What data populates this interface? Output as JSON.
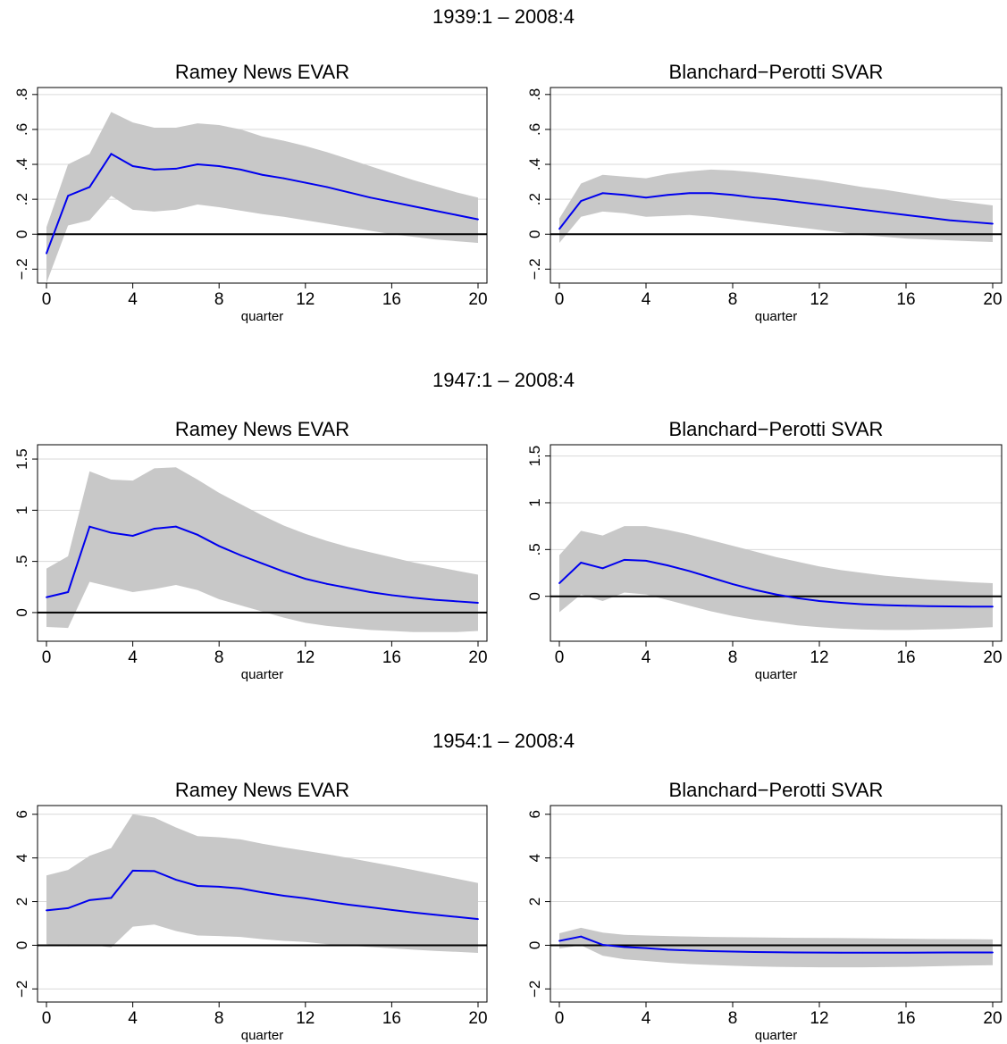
{
  "row_titles": [
    "1939:1 – 2008:4",
    "1947:1 – 2008:4",
    "1954:1 – 2008:4"
  ],
  "colors": {
    "line": "#0000ee",
    "band": "#c8c8c8",
    "grid": "#d9d9d9",
    "zero_line": "#000000"
  },
  "chart_data": [
    {
      "type": "line",
      "title": "Ramey News EVAR",
      "xlabel": "quarter",
      "ylabel": "",
      "xlim": [
        0,
        20
      ],
      "ylim": [
        -0.28,
        0.84
      ],
      "xticks": [
        0,
        4,
        8,
        12,
        16,
        20
      ],
      "xtick_labels": [
        "0",
        "4",
        "8",
        "12",
        "16",
        "20"
      ],
      "yticks": [
        -0.2,
        0,
        0.2,
        0.4,
        0.6,
        0.8
      ],
      "ytick_labels": [
        "−.2",
        "0",
        ".2",
        ".4",
        ".6",
        ".8"
      ],
      "x": [
        0,
        1,
        2,
        3,
        4,
        5,
        6,
        7,
        8,
        9,
        10,
        11,
        12,
        13,
        14,
        15,
        16,
        17,
        18,
        19,
        20
      ],
      "series": [
        {
          "values": [
            -0.11,
            0.22,
            0.27,
            0.46,
            0.39,
            0.37,
            0.375,
            0.4,
            0.39,
            0.37,
            0.34,
            0.32,
            0.295,
            0.27,
            0.24,
            0.21,
            0.185,
            0.16,
            0.135,
            0.11,
            0.085
          ],
          "band": "upper-lower"
        }
      ],
      "upper": [
        0.04,
        0.4,
        0.46,
        0.7,
        0.64,
        0.61,
        0.61,
        0.635,
        0.625,
        0.6,
        0.56,
        0.535,
        0.505,
        0.47,
        0.43,
        0.39,
        0.35,
        0.31,
        0.275,
        0.24,
        0.21
      ],
      "lower": [
        -0.28,
        0.05,
        0.08,
        0.22,
        0.14,
        0.13,
        0.14,
        0.17,
        0.155,
        0.135,
        0.115,
        0.1,
        0.08,
        0.06,
        0.04,
        0.02,
        0.0,
        -0.015,
        -0.03,
        -0.04,
        -0.05
      ]
    },
    {
      "type": "line",
      "title": "Blanchard−Perotti SVAR",
      "xlabel": "quarter",
      "ylabel": "",
      "xlim": [
        0,
        20
      ],
      "ylim": [
        -0.28,
        0.84
      ],
      "xticks": [
        0,
        4,
        8,
        12,
        16,
        20
      ],
      "xtick_labels": [
        "0",
        "4",
        "8",
        "12",
        "16",
        "20"
      ],
      "yticks": [
        -0.2,
        0,
        0.2,
        0.4,
        0.6,
        0.8
      ],
      "ytick_labels": [
        "−.2",
        "0",
        ".2",
        ".4",
        ".6",
        ".8"
      ],
      "x": [
        0,
        1,
        2,
        3,
        4,
        5,
        6,
        7,
        8,
        9,
        10,
        11,
        12,
        13,
        14,
        15,
        16,
        17,
        18,
        19,
        20
      ],
      "series": [
        {
          "values": [
            0.03,
            0.19,
            0.235,
            0.225,
            0.21,
            0.225,
            0.235,
            0.235,
            0.225,
            0.21,
            0.2,
            0.185,
            0.17,
            0.155,
            0.14,
            0.125,
            0.11,
            0.095,
            0.08,
            0.07,
            0.06
          ],
          "band": "upper-lower"
        }
      ],
      "upper": [
        0.09,
        0.29,
        0.34,
        0.33,
        0.32,
        0.345,
        0.36,
        0.37,
        0.365,
        0.355,
        0.34,
        0.325,
        0.31,
        0.29,
        0.27,
        0.255,
        0.235,
        0.215,
        0.195,
        0.18,
        0.165
      ],
      "lower": [
        -0.05,
        0.1,
        0.13,
        0.12,
        0.1,
        0.105,
        0.11,
        0.1,
        0.085,
        0.07,
        0.055,
        0.04,
        0.025,
        0.01,
        -0.005,
        -0.015,
        -0.025,
        -0.03,
        -0.035,
        -0.04,
        -0.045
      ]
    },
    {
      "type": "line",
      "title": "Ramey News EVAR",
      "xlabel": "quarter",
      "ylabel": "",
      "xlim": [
        0,
        20
      ],
      "ylim": [
        -0.28,
        1.64
      ],
      "xticks": [
        0,
        4,
        8,
        12,
        16,
        20
      ],
      "xtick_labels": [
        "0",
        "4",
        "8",
        "12",
        "16",
        "20"
      ],
      "yticks": [
        0,
        0.5,
        1,
        1.5
      ],
      "ytick_labels": [
        "0",
        ".5",
        "1",
        "1.5"
      ],
      "x": [
        0,
        1,
        2,
        3,
        4,
        5,
        6,
        7,
        8,
        9,
        10,
        11,
        12,
        13,
        14,
        15,
        16,
        17,
        18,
        19,
        20
      ],
      "series": [
        {
          "values": [
            0.15,
            0.2,
            0.84,
            0.78,
            0.75,
            0.82,
            0.84,
            0.76,
            0.65,
            0.56,
            0.48,
            0.4,
            0.33,
            0.28,
            0.24,
            0.2,
            0.17,
            0.145,
            0.125,
            0.11,
            0.095
          ],
          "band": "upper-lower"
        }
      ],
      "upper": [
        0.43,
        0.55,
        1.38,
        1.3,
        1.29,
        1.41,
        1.42,
        1.3,
        1.17,
        1.06,
        0.95,
        0.85,
        0.77,
        0.7,
        0.64,
        0.59,
        0.54,
        0.49,
        0.45,
        0.41,
        0.37
      ],
      "lower": [
        -0.14,
        -0.15,
        0.3,
        0.25,
        0.2,
        0.23,
        0.27,
        0.22,
        0.13,
        0.07,
        0.01,
        -0.05,
        -0.1,
        -0.13,
        -0.15,
        -0.17,
        -0.18,
        -0.19,
        -0.19,
        -0.19,
        -0.18
      ]
    },
    {
      "type": "line",
      "title": "Blanchard−Perotti SVAR",
      "xlabel": "quarter",
      "ylabel": "",
      "xlim": [
        0,
        20
      ],
      "ylim": [
        -0.48,
        1.62
      ],
      "xticks": [
        0,
        4,
        8,
        12,
        16,
        20
      ],
      "xtick_labels": [
        "0",
        "4",
        "8",
        "12",
        "16",
        "20"
      ],
      "yticks": [
        0,
        0.5,
        1,
        1.5
      ],
      "ytick_labels": [
        "0",
        ".5",
        "1",
        "1.5"
      ],
      "x": [
        0,
        1,
        2,
        3,
        4,
        5,
        6,
        7,
        8,
        9,
        10,
        11,
        12,
        13,
        14,
        15,
        16,
        17,
        18,
        19,
        20
      ],
      "series": [
        {
          "values": [
            0.14,
            0.36,
            0.3,
            0.39,
            0.38,
            0.33,
            0.27,
            0.2,
            0.13,
            0.07,
            0.02,
            -0.02,
            -0.05,
            -0.07,
            -0.085,
            -0.095,
            -0.1,
            -0.105,
            -0.108,
            -0.11,
            -0.11
          ],
          "band": "upper-lower"
        }
      ],
      "upper": [
        0.44,
        0.7,
        0.65,
        0.75,
        0.75,
        0.71,
        0.66,
        0.6,
        0.54,
        0.48,
        0.42,
        0.37,
        0.32,
        0.28,
        0.25,
        0.22,
        0.2,
        0.18,
        0.165,
        0.15,
        0.14
      ],
      "lower": [
        -0.17,
        0.02,
        -0.05,
        0.04,
        0.02,
        -0.04,
        -0.1,
        -0.16,
        -0.21,
        -0.25,
        -0.28,
        -0.31,
        -0.33,
        -0.345,
        -0.355,
        -0.36,
        -0.36,
        -0.355,
        -0.35,
        -0.34,
        -0.33
      ]
    },
    {
      "type": "line",
      "title": "Ramey News EVAR",
      "xlabel": "quarter",
      "ylabel": "",
      "xlim": [
        0,
        20
      ],
      "ylim": [
        -2.6,
        6.4
      ],
      "xticks": [
        0,
        4,
        8,
        12,
        16,
        20
      ],
      "xtick_labels": [
        "0",
        "4",
        "8",
        "12",
        "16",
        "20"
      ],
      "yticks": [
        -2,
        0,
        2,
        4,
        6
      ],
      "ytick_labels": [
        "−2",
        "0",
        "2",
        "4",
        "6"
      ],
      "x": [
        0,
        1,
        2,
        3,
        4,
        5,
        6,
        7,
        8,
        9,
        10,
        11,
        12,
        13,
        14,
        15,
        16,
        17,
        18,
        19,
        20
      ],
      "series": [
        {
          "values": [
            1.6,
            1.7,
            2.07,
            2.17,
            3.42,
            3.4,
            3.0,
            2.72,
            2.68,
            2.6,
            2.42,
            2.27,
            2.15,
            2.0,
            1.86,
            1.74,
            1.62,
            1.5,
            1.4,
            1.3,
            1.2
          ],
          "band": "upper-lower"
        }
      ],
      "upper": [
        3.2,
        3.45,
        4.1,
        4.45,
        6.0,
        5.85,
        5.4,
        5.0,
        4.95,
        4.85,
        4.65,
        4.48,
        4.33,
        4.17,
        4.0,
        3.82,
        3.64,
        3.45,
        3.25,
        3.05,
        2.85
      ],
      "lower": [
        0.05,
        -0.05,
        0.03,
        -0.1,
        0.85,
        0.95,
        0.65,
        0.45,
        0.42,
        0.38,
        0.28,
        0.2,
        0.15,
        0.05,
        -0.02,
        -0.08,
        -0.14,
        -0.2,
        -0.26,
        -0.3,
        -0.35
      ]
    },
    {
      "type": "line",
      "title": "Blanchard−Perotti SVAR",
      "xlabel": "quarter",
      "ylabel": "",
      "xlim": [
        0,
        20
      ],
      "ylim": [
        -2.6,
        6.4
      ],
      "xticks": [
        0,
        4,
        8,
        12,
        16,
        20
      ],
      "xtick_labels": [
        "0",
        "4",
        "8",
        "12",
        "16",
        "20"
      ],
      "yticks": [
        -2,
        0,
        2,
        4,
        6
      ],
      "ytick_labels": [
        "−2",
        "0",
        "2",
        "4",
        "6"
      ],
      "x": [
        0,
        1,
        2,
        3,
        4,
        5,
        6,
        7,
        8,
        9,
        10,
        11,
        12,
        13,
        14,
        15,
        16,
        17,
        18,
        19,
        20
      ],
      "series": [
        {
          "values": [
            0.2,
            0.4,
            0.02,
            -0.08,
            -0.13,
            -0.2,
            -0.24,
            -0.27,
            -0.29,
            -0.31,
            -0.32,
            -0.33,
            -0.335,
            -0.34,
            -0.34,
            -0.34,
            -0.34,
            -0.335,
            -0.33,
            -0.33,
            -0.33
          ],
          "band": "upper-lower"
        }
      ],
      "upper": [
        0.55,
        0.8,
        0.58,
        0.48,
        0.45,
        0.42,
        0.4,
        0.38,
        0.37,
        0.36,
        0.35,
        0.34,
        0.335,
        0.33,
        0.32,
        0.31,
        0.3,
        0.29,
        0.285,
        0.28,
        0.27
      ],
      "lower": [
        -0.15,
        0.0,
        -0.48,
        -0.64,
        -0.72,
        -0.8,
        -0.86,
        -0.9,
        -0.94,
        -0.97,
        -0.99,
        -1.0,
        -1.01,
        -1.01,
        -1.01,
        -1.0,
        -0.99,
        -0.97,
        -0.95,
        -0.93,
        -0.91
      ]
    }
  ]
}
